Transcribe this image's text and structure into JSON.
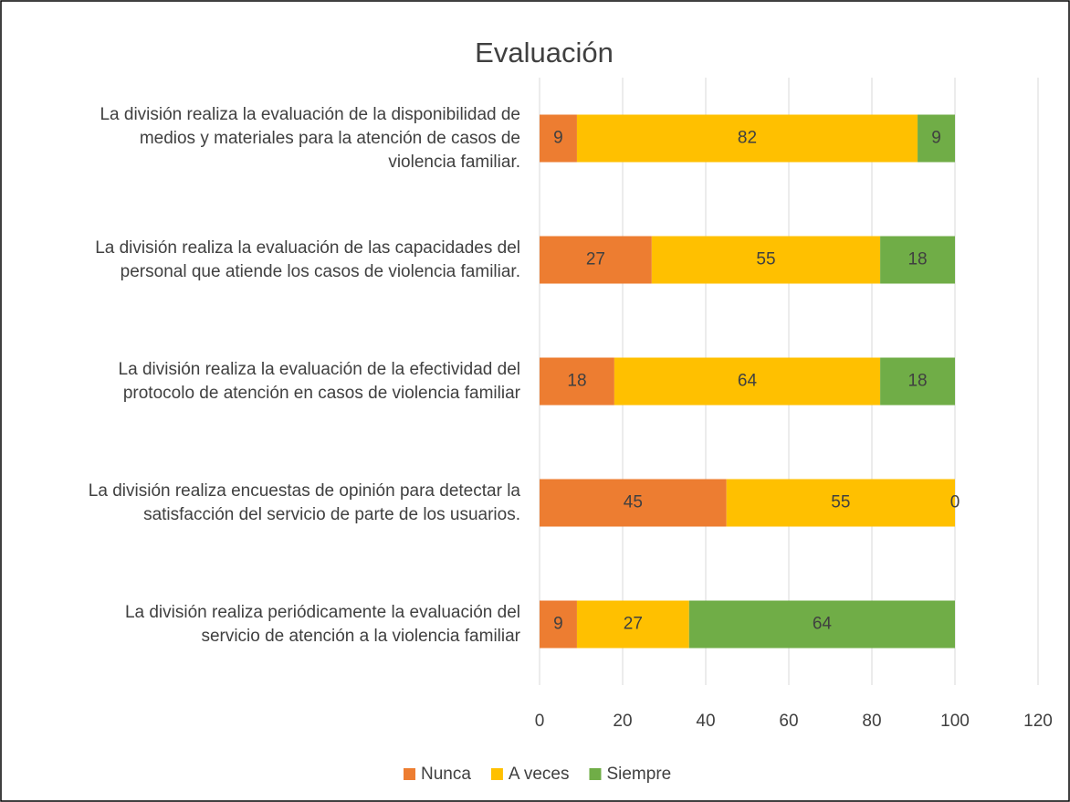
{
  "chart_data": {
    "type": "stacked_barh",
    "title": "Evaluación",
    "categories": [
      "La división realiza la evaluación de la disponibilidad de\nmedios y materiales para la atención de casos de\nviolencia familiar.",
      "La división realiza la evaluación de las capacidades del\npersonal que atiende los casos de violencia familiar.",
      "La división realiza la evaluación de la efectividad del\nprotocolo de atención en casos de violencia familiar",
      "La división realiza encuestas de opinión para detectar la\nsatisfacción del servicio de parte de los usuarios.",
      "La división realiza periódicamente la evaluación del\nservicio de atención a la violencia familiar"
    ],
    "series": [
      {
        "name": "Nunca",
        "color": "#ED7D31",
        "values": [
          9,
          27,
          18,
          45,
          9
        ]
      },
      {
        "name": "A veces",
        "color": "#FFC000",
        "values": [
          82,
          55,
          64,
          55,
          27
        ]
      },
      {
        "name": "Siempre",
        "color": "#70AD47",
        "values": [
          9,
          18,
          18,
          0,
          64
        ]
      }
    ],
    "xlim": [
      0,
      120
    ],
    "xticks": [
      0,
      20,
      40,
      60,
      80,
      100,
      120
    ],
    "grid": true,
    "legend": "bottom"
  }
}
